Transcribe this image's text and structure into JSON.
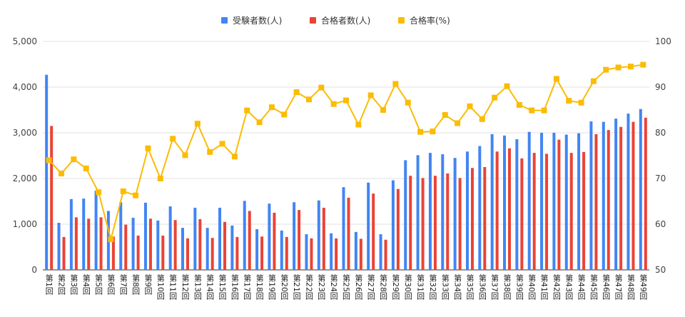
{
  "chart_data": {
    "type": "bar",
    "categories": [
      "第1回",
      "第2回",
      "第3回",
      "第4回",
      "第5回",
      "第6回",
      "第7回",
      "第8回",
      "第9回",
      "第10回",
      "第11回",
      "第12回",
      "第13回",
      "第14回",
      "第15回",
      "第16回",
      "第17回",
      "第18回",
      "第19回",
      "第20回",
      "第21回",
      "第22回",
      "第23回",
      "第24回",
      "第25回",
      "第26回",
      "第27回",
      "第28回",
      "第29回",
      "第30回",
      "第31回",
      "第32回",
      "第33回",
      "第34回",
      "第35回",
      "第36回",
      "第37回",
      "第38回",
      "第39回",
      "第40回",
      "第41回",
      "第42回",
      "第43回",
      "第44回",
      "第45回",
      "第46回",
      "第47回",
      "第48回",
      "第49回"
    ],
    "series": [
      {
        "name": "受験者数(人)",
        "type": "bar",
        "axis": "left",
        "color": "#4285F4",
        "values": [
          4270,
          1030,
          1550,
          1560,
          1730,
          1290,
          1480,
          1140,
          1470,
          1080,
          1390,
          920,
          1360,
          920,
          1360,
          970,
          1510,
          890,
          1450,
          860,
          1480,
          780,
          1520,
          800,
          1810,
          830,
          1910,
          780,
          1960,
          2400,
          2510,
          2560,
          2530,
          2450,
          2590,
          2710,
          2970,
          2940,
          2860,
          3020,
          3000,
          3000,
          2960,
          2990,
          3250,
          3240,
          3310,
          3420,
          3520
        ]
      },
      {
        "name": "合格者数(人)",
        "type": "bar",
        "axis": "left",
        "color": "#EA4335",
        "values": [
          3150,
          720,
          1150,
          1120,
          1150,
          730,
          990,
          750,
          1120,
          750,
          1090,
          690,
          1110,
          700,
          1050,
          720,
          1290,
          730,
          1250,
          720,
          1310,
          690,
          1360,
          690,
          1580,
          680,
          1670,
          660,
          1770,
          2060,
          2010,
          2060,
          2110,
          2010,
          2230,
          2250,
          2590,
          2660,
          2440,
          2560,
          2540,
          2850,
          2560,
          2580,
          2970,
          3060,
          3130,
          3240,
          3330
        ]
      },
      {
        "name": "合格率(%)",
        "type": "line",
        "axis": "right",
        "color": "#FBBC04",
        "values": [
          74,
          71.1,
          74.2,
          72.2,
          67,
          56.7,
          67.2,
          66.3,
          76.6,
          70,
          78.7,
          75.1,
          82,
          75.8,
          77.6,
          74.8,
          84.9,
          82.3,
          85.6,
          84,
          88.9,
          87.3,
          89.9,
          86.3,
          87.1,
          81.8,
          88.2,
          85,
          90.7,
          86.6,
          80.2,
          80.3,
          83.9,
          82.1,
          85.8,
          83,
          87.7,
          90.2,
          86.1,
          84.9,
          84.9,
          91.8,
          87,
          86.6,
          91.3,
          93.8,
          94.3,
          94.5,
          94.9
        ]
      }
    ],
    "left_axis": {
      "min": 0,
      "max": 5000,
      "ticks": [
        "0",
        "1,000",
        "2,000",
        "3,000",
        "4,000",
        "5,000"
      ]
    },
    "right_axis": {
      "min": 50,
      "max": 100,
      "ticks": [
        "50",
        "60",
        "70",
        "80",
        "90",
        "100"
      ]
    },
    "legend_position": "top-center",
    "grid": true
  }
}
